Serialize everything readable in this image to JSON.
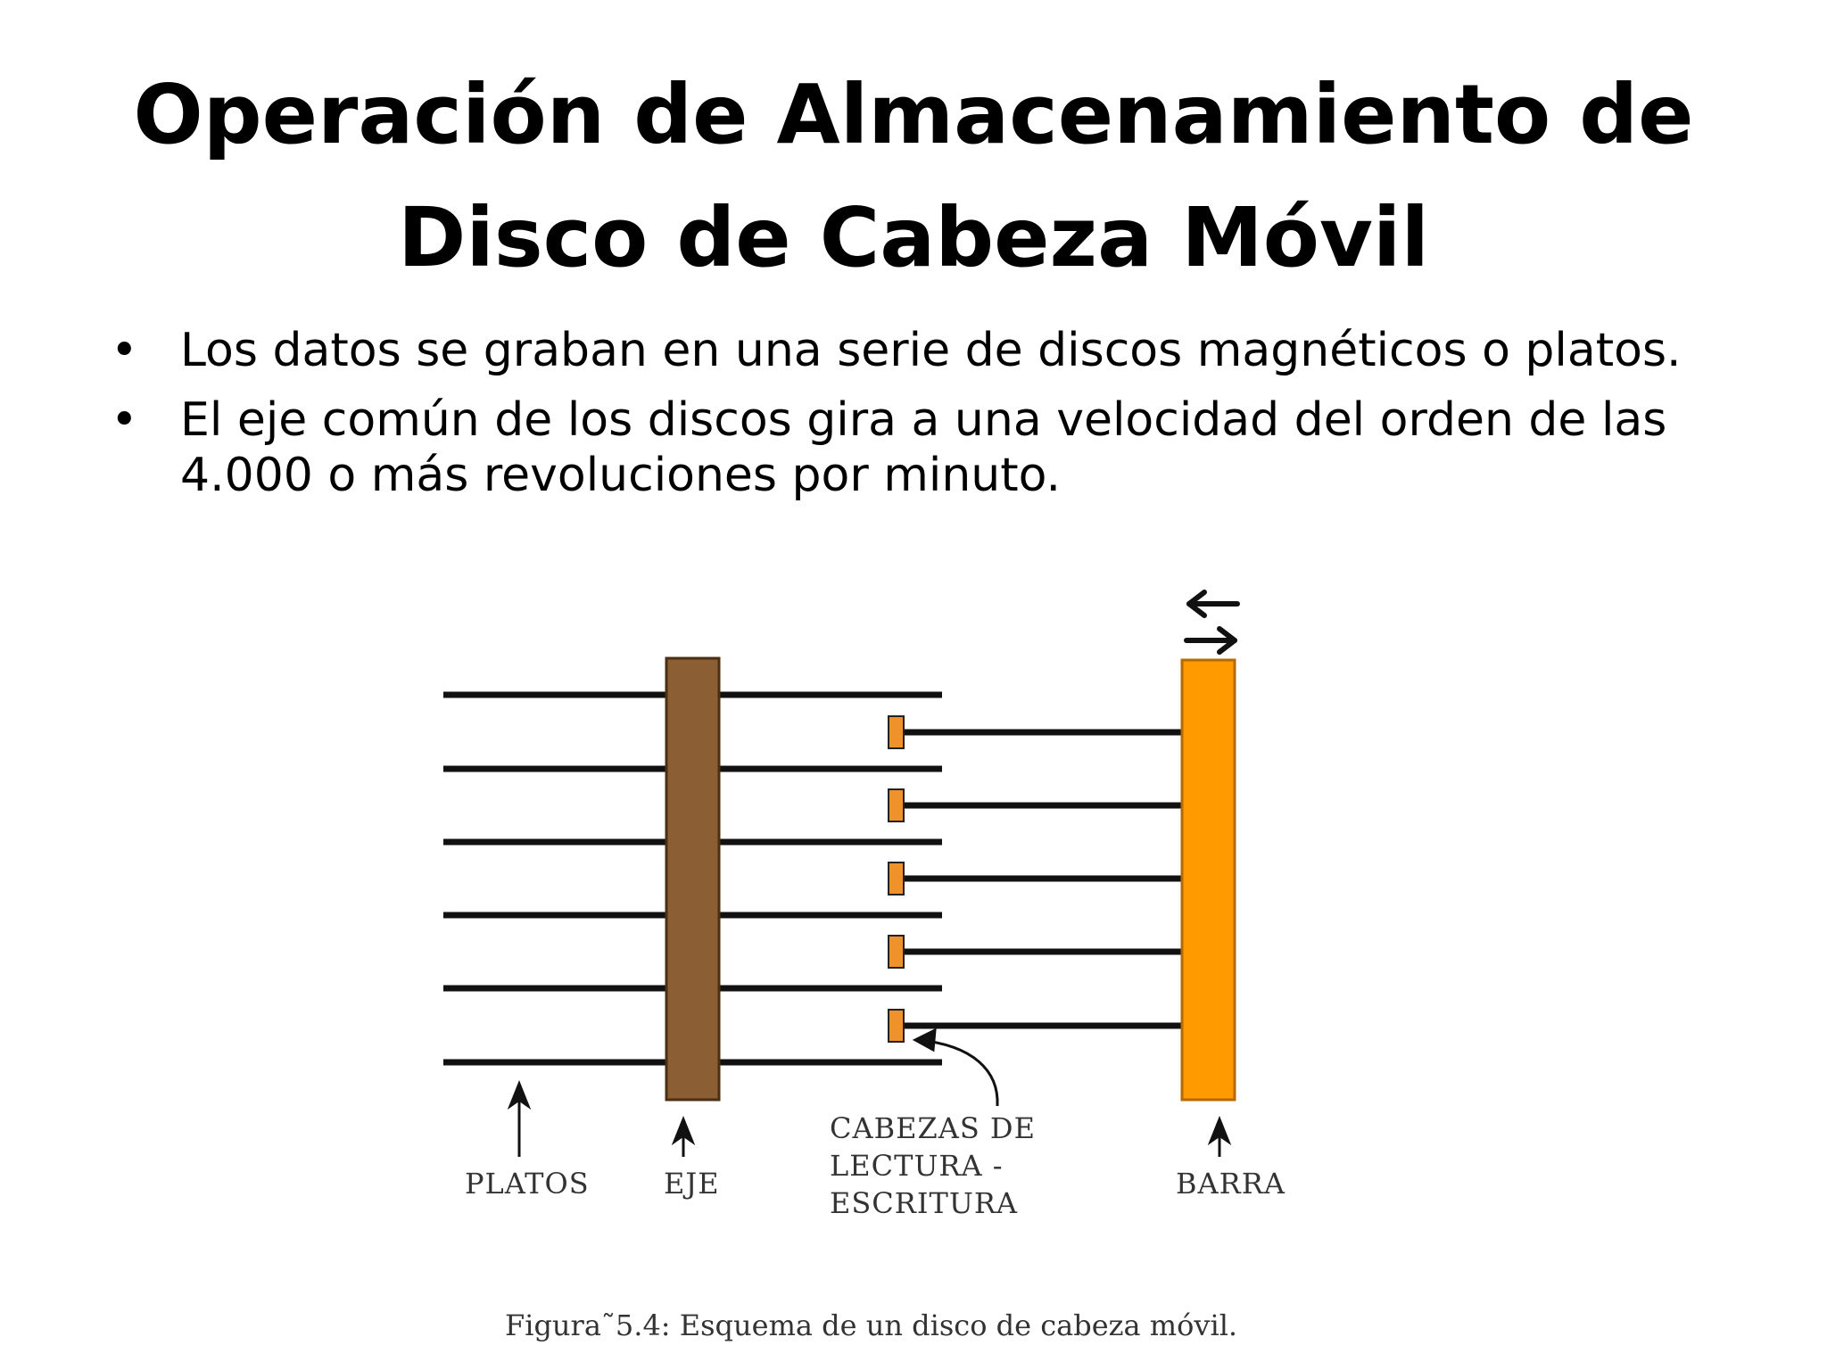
{
  "slide": {
    "title_line1": "Operación de Almacenamiento de",
    "title_line2": "Disco de Cabeza Móvil",
    "bullets": [
      "Los datos se graban en una serie de discos magnéticos o platos.",
      "El eje común de los discos gira a una velocidad del orden de las 4.000 o más revoluciones por minuto."
    ]
  },
  "diagram": {
    "labels": {
      "platos": "PLATOS",
      "eje": "EJE",
      "cabezas_line1": "CABEZAS DE",
      "cabezas_line2": "LECTURA -",
      "cabezas_line3": "ESCRITURA",
      "barra": "BARRA"
    },
    "caption": "Figura˜5.4: Esquema de un disco de cabeza móvil.",
    "colors": {
      "eje": "#8b5e34",
      "barra": "#ff9a00",
      "heads": "#f0922b",
      "lines": "#111111"
    }
  }
}
